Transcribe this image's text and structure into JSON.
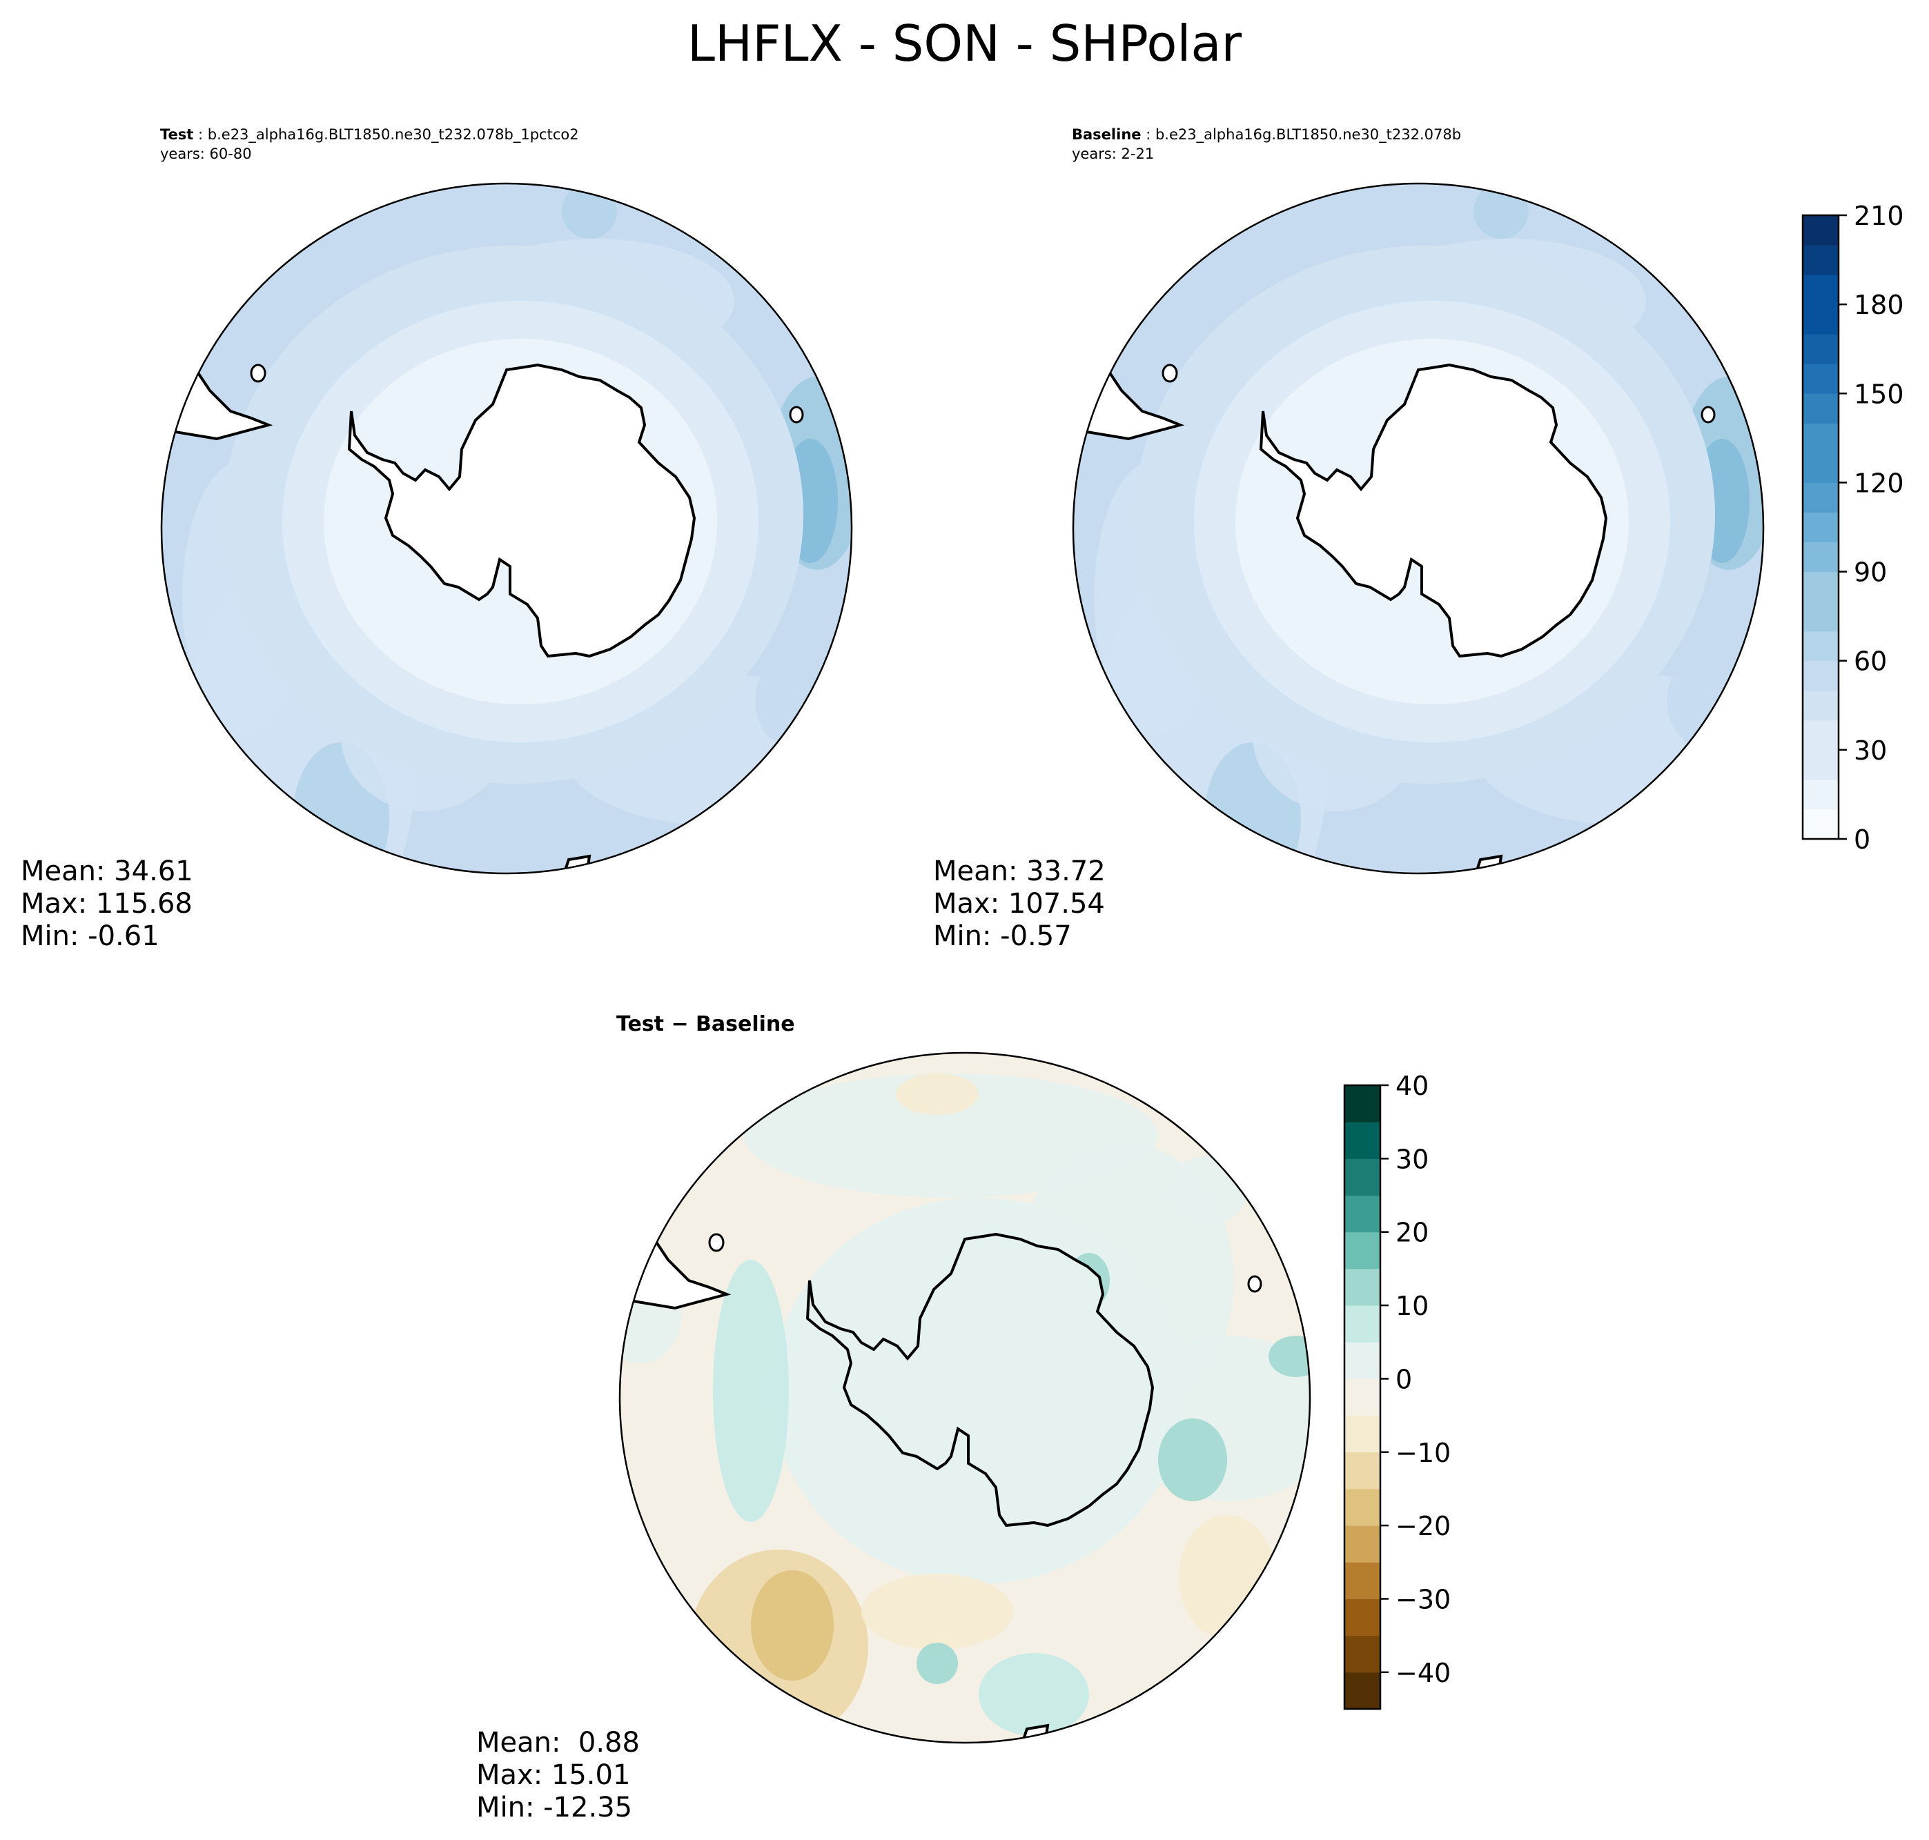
{
  "figure": {
    "title": "LHFLX - SON - SHPolar"
  },
  "panels": {
    "test": {
      "label": "Test",
      "case": "b.e23_alpha16g.BLT1850.ne30_t232.078b_1pctco2",
      "years": "years: 60-80",
      "stats": {
        "mean": "Mean: 34.61",
        "max": "Max: 115.68",
        "min": "Min: -0.61"
      }
    },
    "baseline": {
      "label": "Baseline",
      "case": "b.e23_alpha16g.BLT1850.ne30_t232.078b",
      "years": "years: 2-21",
      "stats": {
        "mean": "Mean: 33.72",
        "max": "Max: 107.54",
        "min": "Min: -0.57"
      }
    },
    "diff": {
      "title": "Test − Baseline",
      "stats": {
        "mean": "Mean:  0.88",
        "max": "Max: 15.01",
        "min": "Min: -12.35"
      }
    }
  },
  "chart_data": [
    {
      "type": "heatmap",
      "name": "Test",
      "projection": "south-polar-stereographic",
      "colormap": "Blues",
      "stats": {
        "mean": 34.61,
        "max": 115.68,
        "min": -0.61
      },
      "colorbar": {
        "range": [
          0,
          210
        ],
        "ticks": [
          0,
          30,
          60,
          90,
          120,
          150,
          180,
          210
        ],
        "levels": 21
      }
    },
    {
      "type": "heatmap",
      "name": "Baseline",
      "projection": "south-polar-stereographic",
      "colormap": "Blues",
      "stats": {
        "mean": 33.72,
        "max": 107.54,
        "min": -0.57
      },
      "colorbar": {
        "range": [
          0,
          210
        ],
        "ticks": [
          0,
          30,
          60,
          90,
          120,
          150,
          180,
          210
        ],
        "levels": 21
      }
    },
    {
      "type": "heatmap",
      "name": "Test − Baseline",
      "projection": "south-polar-stereographic",
      "colormap": "BrBG",
      "stats": {
        "mean": 0.88,
        "max": 15.01,
        "min": -12.35
      },
      "colorbar": {
        "range": [
          -45,
          40
        ],
        "ticks": [
          -40,
          -30,
          -20,
          -10,
          0,
          10,
          20,
          30,
          40
        ],
        "levels": 17
      }
    }
  ],
  "colors": {
    "blues": [
      "#f7fbff",
      "#ebf3fb",
      "#deebf7",
      "#d1e3f3",
      "#c6dbef",
      "#b4d4e9",
      "#9ecae1",
      "#82bbdb",
      "#6baed6",
      "#539ecd",
      "#4292c6",
      "#3181bd",
      "#2171b5",
      "#1461a8",
      "#08519c",
      "#083f80",
      "#08306b"
    ],
    "brbg": [
      "#543005",
      "#7a470a",
      "#985c12",
      "#b77d2e",
      "#cfa55a",
      "#dfc27d",
      "#ecd8a8",
      "#f5ebd0",
      "#f5f0e6",
      "#e6f2ef",
      "#c7eae5",
      "#a0d8d0",
      "#6cbfb3",
      "#3c9d94",
      "#1b7d73",
      "#00625a",
      "#003c30"
    ],
    "land": "#ffffff",
    "coast": "#000000"
  }
}
